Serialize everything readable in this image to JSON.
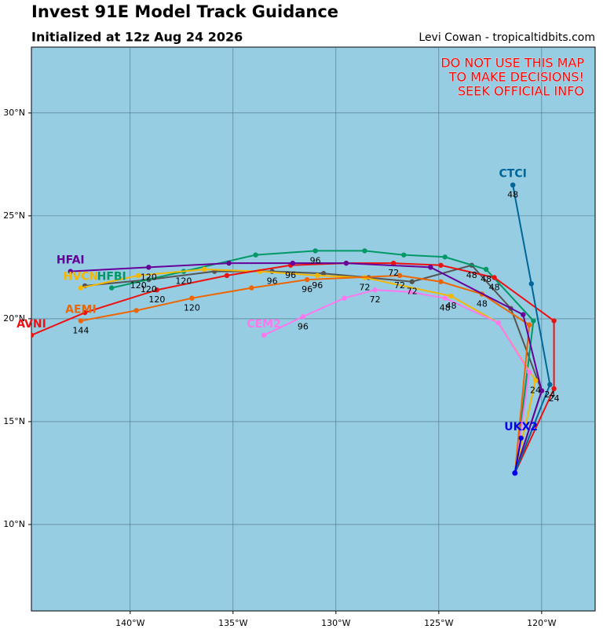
{
  "chart_data": {
    "type": "line",
    "title": "Invest 91E Model Track Guidance",
    "subtitle": "Initialized at 12z Aug 24 2026",
    "credit": "Levi Cowan - tropicaltidbits.com",
    "warning": [
      "DO NOT USE THIS MAP",
      "TO MAKE DECISIONS!",
      "SEEK OFFICIAL INFO"
    ],
    "xlim": [
      -144.8,
      -117.4
    ],
    "ylim": [
      5.8,
      33.2
    ],
    "xticks": [
      {
        "value": -140,
        "label": "140°W"
      },
      {
        "value": -135,
        "label": "135°W"
      },
      {
        "value": -130,
        "label": "130°W"
      },
      {
        "value": -125,
        "label": "125°W"
      },
      {
        "value": -120,
        "label": "120°W"
      }
    ],
    "yticks": [
      {
        "value": 10,
        "label": "10°N"
      },
      {
        "value": 15,
        "label": "15°N"
      },
      {
        "value": 20,
        "label": "20°N"
      },
      {
        "value": 25,
        "label": "25°N"
      },
      {
        "value": 30,
        "label": "30°N"
      }
    ],
    "grid": true,
    "series": [
      {
        "color": "#555555",
        "x": [
          -121.3,
          -120.0,
          -121.5,
          -123.4,
          -126.3,
          -128.4,
          -130.6,
          -133.1,
          -135.9,
          -139.1,
          -142.2
        ],
        "values": [
          12.5,
          16.5,
          20.5,
          22.6,
          21.8,
          22.0,
          22.2,
          22.3,
          22.3,
          21.9,
          21.6
        ],
        "labels": [
          null,
          null,
          null,
          48,
          72,
          null,
          null,
          96,
          null,
          120,
          null
        ]
      },
      {
        "name": "HFBI",
        "color": "#009966",
        "x": [
          -121.3,
          -120.4,
          -122.7,
          -124.7,
          -126.7,
          -128.6,
          -131.0,
          -133.9,
          -137.4,
          -140.9
        ],
        "values": [
          12.5,
          19.9,
          22.4,
          23.0,
          23.1,
          23.3,
          23.3,
          23.1,
          22.3,
          21.5
        ],
        "labels": [
          null,
          null,
          48,
          null,
          null,
          null,
          96,
          null,
          120,
          null
        ]
      },
      {
        "name": "HVCN",
        "color": "#f5b800",
        "x": [
          -121.3,
          -120.3,
          -122.1,
          -124.4,
          -128.6,
          -130.9,
          -133.7,
          -136.4,
          -139.6,
          -142.4
        ],
        "values": [
          12.5,
          17.0,
          19.8,
          21.1,
          22.0,
          22.1,
          22.3,
          22.4,
          22.1,
          21.5
        ],
        "labels": [
          null,
          24,
          null,
          48,
          72,
          96,
          null,
          null,
          120,
          null
        ]
      },
      {
        "name": "CEM2",
        "color": "#ff77ee",
        "x": [
          -121.3,
          -120.6,
          -122.1,
          -124.7,
          -126.4,
          -128.1,
          -129.6,
          -131.6,
          -133.5
        ],
        "values": [
          12.5,
          17.4,
          19.8,
          21.0,
          21.3,
          21.4,
          21.0,
          20.1,
          19.2
        ],
        "labels": [
          null,
          null,
          null,
          48,
          null,
          72,
          null,
          96,
          null
        ]
      },
      {
        "name": "AEMI",
        "color": "#ee6600",
        "x": [
          -121.3,
          -120.6,
          -122.9,
          -124.9,
          -126.9,
          -131.4,
          -134.1,
          -137.0,
          -139.7,
          -142.4
        ],
        "values": [
          12.5,
          19.7,
          21.2,
          21.8,
          22.1,
          21.9,
          21.5,
          21.0,
          20.4,
          19.9
        ],
        "labels": [
          null,
          null,
          48,
          null,
          72,
          96,
          null,
          120,
          null,
          144
        ]
      },
      {
        "name": "AVNI",
        "color": "#ee1111",
        "x": [
          -121.3,
          -119.4,
          -119.4,
          -122.3,
          -124.9,
          -127.2,
          -129.5,
          -132.2,
          -135.3,
          -138.7,
          -142.2,
          -144.8
        ],
        "values": [
          12.5,
          16.6,
          19.9,
          22.0,
          22.6,
          22.7,
          22.7,
          22.6,
          22.1,
          21.4,
          20.3,
          19.2
        ],
        "labels": [
          null,
          24,
          null,
          48,
          null,
          72,
          null,
          96,
          null,
          120,
          null,
          null
        ]
      },
      {
        "name": "HFAI",
        "color": "#660099",
        "x": [
          -121.3,
          -120.0,
          -120.9,
          -125.4,
          -129.5,
          -132.1,
          -135.2,
          -139.1,
          -142.9
        ],
        "values": [
          12.5,
          16.5,
          20.2,
          22.5,
          22.7,
          22.7,
          22.7,
          22.5,
          22.3
        ],
        "labels": [
          null,
          null,
          null,
          null,
          null,
          null,
          null,
          120,
          null
        ]
      },
      {
        "name": "CTCI",
        "color": "#006699",
        "x": [
          -121.3,
          -119.6,
          -120.5,
          -121.4
        ],
        "values": [
          12.5,
          16.8,
          21.7,
          26.5
        ],
        "labels": [
          null,
          24,
          null,
          48
        ]
      },
      {
        "name": "UKX2",
        "color": "#0000ee",
        "x": [
          -121.3,
          -121.0
        ],
        "values": [
          12.5,
          14.2
        ],
        "labels": [
          null,
          null
        ]
      }
    ]
  }
}
